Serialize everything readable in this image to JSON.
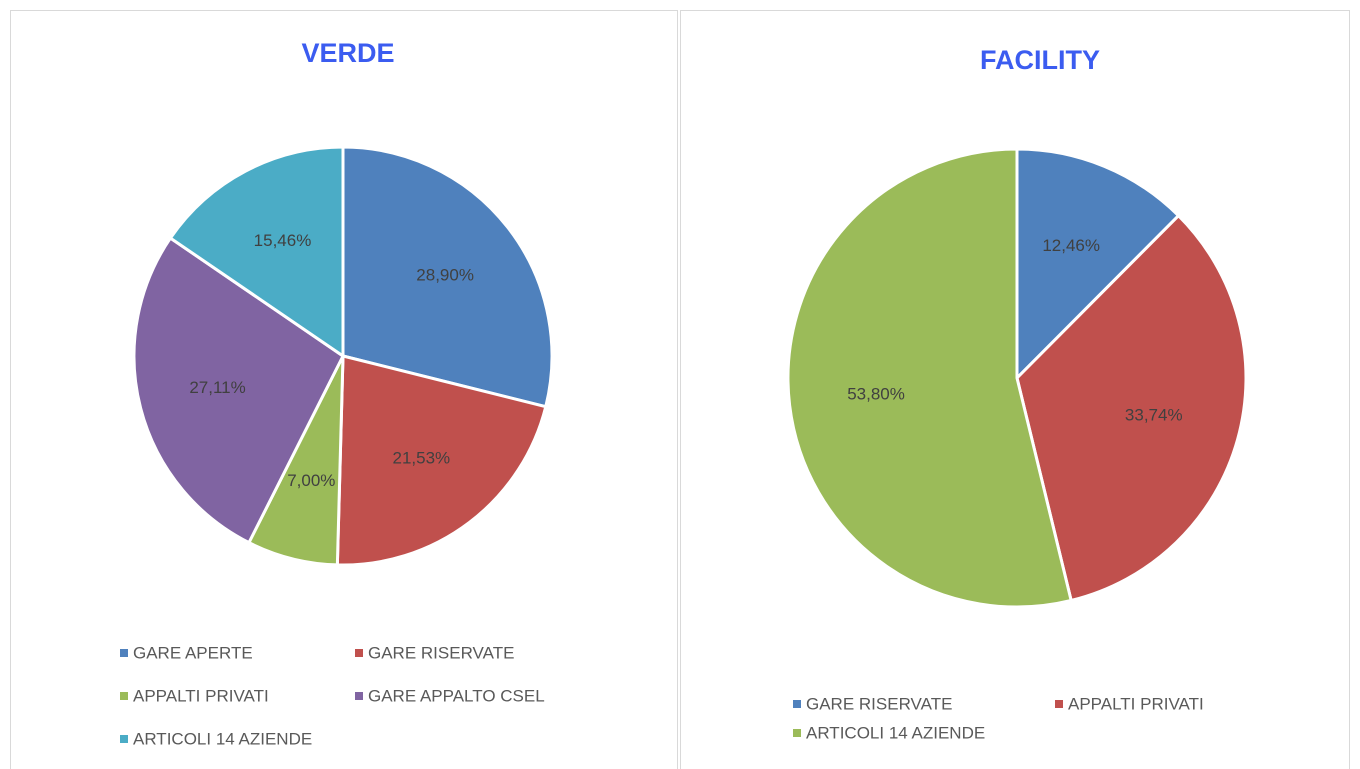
{
  "chart_data": [
    {
      "type": "pie",
      "title": "VERDE",
      "categories": [
        "GARE APERTE",
        "GARE RISERVATE",
        "APPALTI PRIVATI",
        "GARE APPALTO CSEL",
        "ARTICOLI 14 AZIENDE"
      ],
      "values": [
        28.9,
        21.53,
        7.0,
        27.11,
        15.46
      ],
      "value_labels": [
        "28,90%",
        "21,53%",
        "7,00%",
        "27,11%",
        "15,46%"
      ],
      "colors": [
        "#4f81bd",
        "#c0504d",
        "#9bbb59",
        "#8064a2",
        "#4bacc6"
      ]
    },
    {
      "type": "pie",
      "title": "FACILITY",
      "categories": [
        "GARE RISERVATE",
        "APPALTI PRIVATI",
        "ARTICOLI 14 AZIENDE"
      ],
      "values": [
        12.46,
        33.74,
        53.8
      ],
      "value_labels": [
        "12,46%",
        "33,74%",
        "53,80%"
      ],
      "colors": [
        "#4f81bd",
        "#c0504d",
        "#9bbb59"
      ]
    }
  ]
}
